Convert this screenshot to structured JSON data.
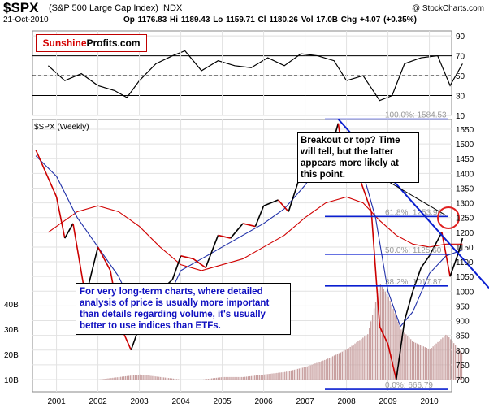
{
  "header": {
    "symbol": "$SPX",
    "name": "(S&P 500 Large Cap Index) INDX",
    "date": "21-Oct-2010",
    "copyright": "@ StockCharts.com",
    "quote": "Op 1176.83  Hi 1189.43  Lo 1159.71  Cl 1180.26  Vol 17.0B  Chg +4.07 (+0.35%)"
  },
  "brand": {
    "part1": "Sunshine",
    "part2": "Profits.com"
  },
  "annotations": {
    "breakout": "Breakout or top? Time will tell, but the latter appears more likely at this point.",
    "longterm": "For very long-term charts, where detailed analysis of price is usually more important than details regarding volume, it's usually better to use indices than ETFs."
  },
  "colors": {
    "price": "#000000",
    "down": "#cc0000",
    "ma_short": "#1f2fa8",
    "ma_long": "#d00000",
    "fib": "#0a1fd0",
    "volume": "#c8a0a0",
    "highlight": "#e02020"
  },
  "chart_data": [
    {
      "type": "line",
      "name": "rsi",
      "y_ticks": [
        10,
        30,
        50,
        70,
        90
      ],
      "ylim": [
        10,
        95
      ],
      "reference_lines": [
        30,
        50,
        70
      ],
      "x": [
        2000.8,
        2001.2,
        2001.6,
        2002.0,
        2002.4,
        2002.7,
        2003.0,
        2003.4,
        2003.8,
        2004.1,
        2004.5,
        2004.9,
        2005.3,
        2005.7,
        2006.1,
        2006.5,
        2006.9,
        2007.3,
        2007.7,
        2008.0,
        2008.4,
        2008.8,
        2009.1,
        2009.4,
        2009.8,
        2010.2,
        2010.5,
        2010.8
      ],
      "values": [
        60,
        45,
        52,
        40,
        35,
        28,
        45,
        62,
        70,
        75,
        55,
        65,
        60,
        58,
        68,
        60,
        72,
        70,
        65,
        45,
        50,
        25,
        30,
        62,
        68,
        70,
        40,
        62
      ]
    },
    {
      "type": "line",
      "name": "$SPX (Weekly)",
      "title": "$SPX (Weekly)",
      "x_ticks": [
        "2001",
        "2002",
        "2003",
        "2004",
        "2005",
        "2006",
        "2007",
        "2008",
        "2009",
        "2010"
      ],
      "y_ticks": [
        700,
        750,
        800,
        850,
        900,
        950,
        1000,
        1050,
        1100,
        1150,
        1200,
        1250,
        1300,
        1350,
        1400,
        1450,
        1500,
        1550
      ],
      "ylim": [
        660,
        1570
      ],
      "series": [
        {
          "name": "price",
          "x": [
            2000.5,
            2000.75,
            2001.0,
            2001.2,
            2001.4,
            2001.7,
            2002.0,
            2002.3,
            2002.55,
            2002.8,
            2003.0,
            2003.25,
            2003.5,
            2003.8,
            2004.0,
            2004.3,
            2004.6,
            2004.9,
            2005.2,
            2005.5,
            2005.8,
            2006.0,
            2006.35,
            2006.6,
            2006.9,
            2007.2,
            2007.45,
            2007.6,
            2007.8,
            2008.0,
            2008.3,
            2008.6,
            2008.8,
            2009.0,
            2009.2,
            2009.4,
            2009.6,
            2009.8,
            2010.0,
            2010.3,
            2010.5,
            2010.7,
            2010.8
          ],
          "values": [
            1480,
            1400,
            1320,
            1180,
            1230,
            980,
            1150,
            1070,
            880,
            800,
            880,
            860,
            1000,
            1040,
            1120,
            1110,
            1080,
            1190,
            1180,
            1230,
            1220,
            1290,
            1310,
            1270,
            1400,
            1440,
            1540,
            1470,
            1570,
            1380,
            1390,
            1270,
            880,
            820,
            700,
            900,
            1000,
            1080,
            1120,
            1200,
            1050,
            1130,
            1180
          ]
        },
        {
          "name": "short moving average",
          "x": [
            2000.5,
            2001.0,
            2001.5,
            2002.0,
            2002.5,
            2003.0,
            2003.5,
            2004.0,
            2004.5,
            2005.0,
            2005.5,
            2006.0,
            2006.5,
            2007.0,
            2007.5,
            2008.0,
            2008.4,
            2008.7,
            2009.0,
            2009.3,
            2009.6,
            2010.0,
            2010.4,
            2010.8
          ],
          "values": [
            1460,
            1390,
            1250,
            1150,
            1050,
            900,
            920,
            1070,
            1110,
            1150,
            1190,
            1230,
            1280,
            1360,
            1460,
            1500,
            1400,
            1250,
            1000,
            880,
            930,
            1060,
            1120,
            1140
          ]
        },
        {
          "name": "long moving average",
          "x": [
            2000.8,
            2001.5,
            2002.0,
            2002.5,
            2003.0,
            2003.5,
            2004.0,
            2004.5,
            2005.0,
            2005.5,
            2006.0,
            2006.5,
            2007.0,
            2007.5,
            2008.0,
            2008.4,
            2008.8,
            2009.2,
            2009.6,
            2010.0,
            2010.4,
            2010.8
          ],
          "values": [
            1200,
            1270,
            1290,
            1270,
            1220,
            1150,
            1090,
            1070,
            1090,
            1110,
            1150,
            1190,
            1250,
            1300,
            1320,
            1300,
            1240,
            1190,
            1160,
            1150,
            1160,
            1160
          ]
        },
        {
          "name": "volume",
          "x": [
            2000.5,
            2001.0,
            2001.5,
            2002.0,
            2002.5,
            2003.0,
            2003.5,
            2004.0,
            2004.5,
            2005.0,
            2005.5,
            2006.0,
            2006.5,
            2007.0,
            2007.5,
            2008.0,
            2008.5,
            2008.8,
            2009.0,
            2009.3,
            2009.6,
            2010.0,
            2010.4,
            2010.8
          ],
          "values": [
            6,
            7,
            8,
            10,
            11,
            12,
            11,
            10,
            10,
            11,
            11,
            12,
            13,
            15,
            18,
            22,
            28,
            48,
            43,
            30,
            25,
            22,
            28,
            20
          ]
        }
      ],
      "volume_axis_ticks": [
        "10B",
        "20B",
        "30B",
        "40B"
      ],
      "fibonacci_labels": [
        "100.0%: 1584.53",
        "61.8%: 1253.96",
        "50.0%: 1125.60",
        "38.2%: 1017.87",
        "0.0%: 666.79"
      ],
      "fibonacci_levels": [
        1584.53,
        1253.96,
        1125.6,
        1017.87,
        666.79
      ],
      "trendline": {
        "x": [
          2007.8,
          2011.0
        ],
        "values": [
          1584.53,
          1080
        ]
      }
    }
  ]
}
